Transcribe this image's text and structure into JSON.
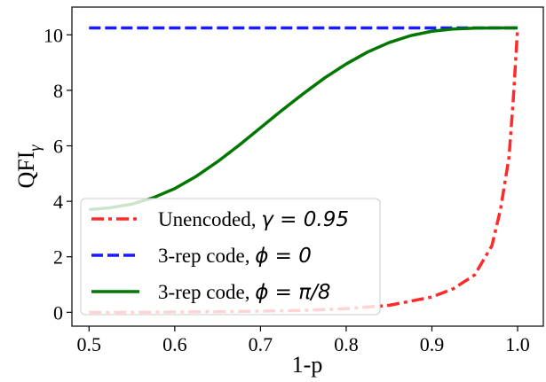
{
  "chart_data": {
    "type": "line",
    "xlabel": "1-p",
    "ylabel": "QFI",
    "ylabel_subscript": "γ",
    "xlim": [
      0.48,
      1.03
    ],
    "ylim": [
      -0.5,
      11.0
    ],
    "xticks": [
      0.5,
      0.6,
      0.7,
      0.8,
      0.9,
      1.0
    ],
    "xtick_labels": [
      "0.5",
      "0.6",
      "0.7",
      "0.8",
      "0.9",
      "1.0"
    ],
    "yticks": [
      0,
      2,
      4,
      6,
      8,
      10
    ],
    "ytick_labels": [
      "0",
      "2",
      "4",
      "6",
      "8",
      "10"
    ],
    "grid": false,
    "legend_position": "lower-left",
    "series": [
      {
        "legend_text": "Unencoded, ",
        "legend_math": "γ = 0.95",
        "color": "#ff2a2a",
        "style": "dashdot",
        "x": [
          0.5,
          0.55,
          0.6,
          0.65,
          0.7,
          0.75,
          0.8,
          0.85,
          0.9,
          0.925,
          0.95,
          0.97,
          0.98,
          0.99,
          0.995,
          1.0
        ],
        "y": [
          0.0,
          0.0,
          0.01,
          0.02,
          0.04,
          0.07,
          0.13,
          0.25,
          0.55,
          0.85,
          1.35,
          2.4,
          3.7,
          5.6,
          7.7,
          10.25
        ]
      },
      {
        "legend_text": "3-rep code, ",
        "legend_math": "ϕ = 0",
        "color": "#1a1aff",
        "style": "dashed",
        "x": [
          0.5,
          1.0
        ],
        "y": [
          10.25,
          10.25
        ]
      },
      {
        "legend_text": "3-rep code, ",
        "legend_math": "ϕ = π/8",
        "color": "#007700",
        "style": "solid",
        "x": [
          0.5,
          0.525,
          0.55,
          0.575,
          0.6,
          0.625,
          0.65,
          0.675,
          0.7,
          0.725,
          0.75,
          0.775,
          0.8,
          0.825,
          0.85,
          0.875,
          0.9,
          0.925,
          0.95,
          0.975,
          1.0
        ],
        "y": [
          3.7,
          3.77,
          3.9,
          4.13,
          4.46,
          4.9,
          5.43,
          6.02,
          6.65,
          7.28,
          7.88,
          8.45,
          8.95,
          9.38,
          9.72,
          9.97,
          10.13,
          10.21,
          10.24,
          10.25,
          10.25
        ]
      }
    ]
  }
}
